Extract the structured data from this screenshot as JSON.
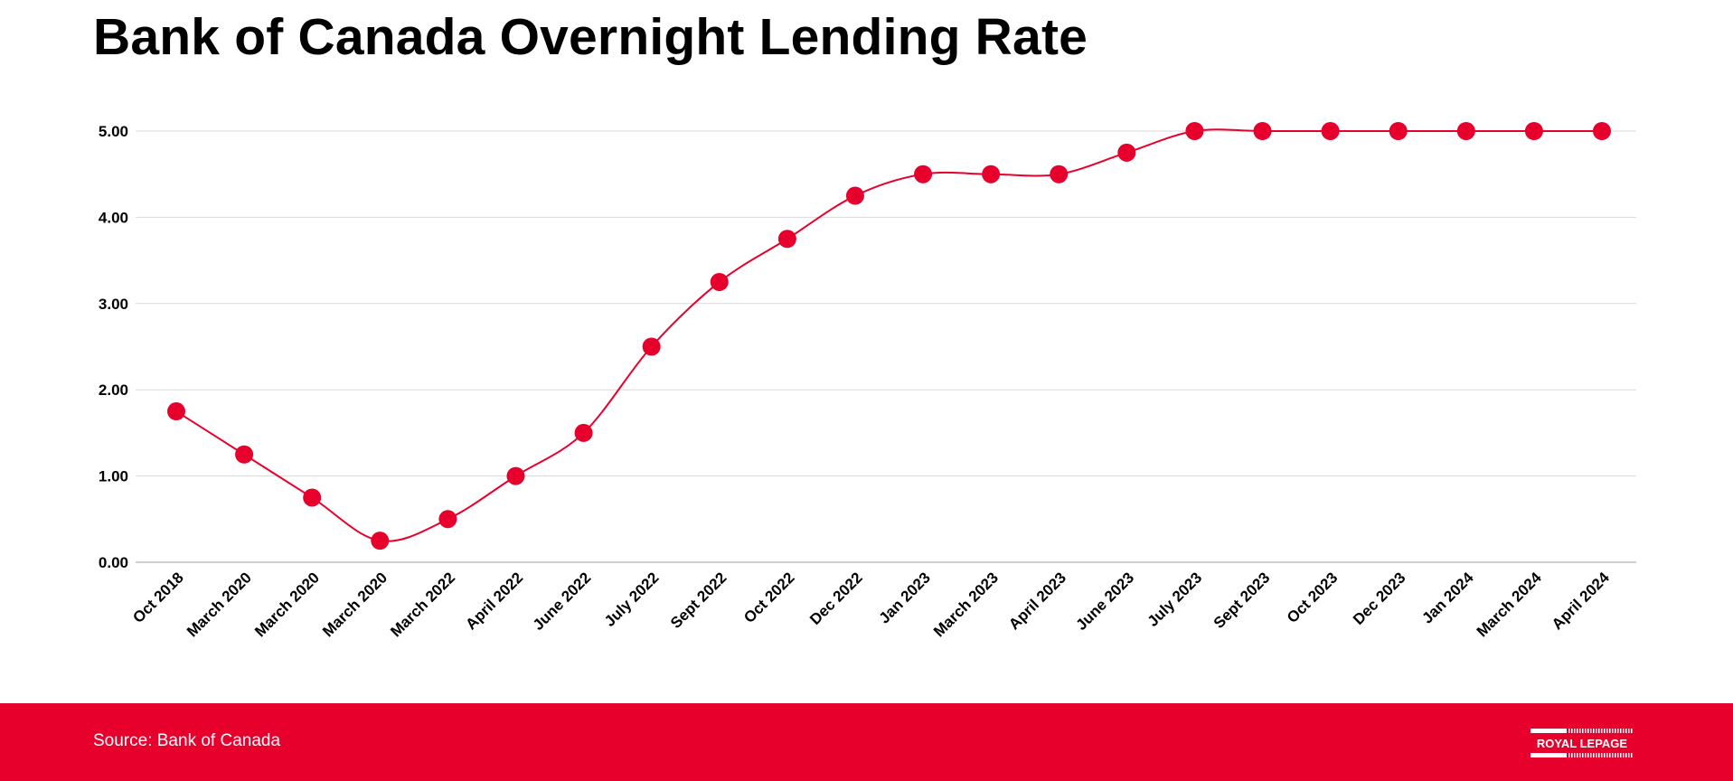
{
  "page": {
    "title": "Bank of Canada Overnight Lending Rate"
  },
  "footer": {
    "source": "Source: Bank of Canada",
    "brand_logo_text": "ROYAL LEPAGE"
  },
  "colors": {
    "accent": "#e8002c",
    "grid": "#d9d9d9",
    "axis": "#bfbfbf",
    "text": "#000000"
  },
  "chart_data": {
    "type": "line",
    "title": "Bank of Canada Overnight Lending Rate",
    "xlabel": "",
    "ylabel": "",
    "smooth": true,
    "markers": true,
    "grid": true,
    "legend": "none",
    "ylim": [
      0,
      5
    ],
    "yticks": [
      "0.00",
      "1.00",
      "2.00",
      "3.00",
      "4.00",
      "5.00"
    ],
    "categories": [
      "Oct 2018",
      "March 2020",
      "March 2020",
      "March 2020",
      "March 2022",
      "April 2022",
      "June 2022",
      "July 2022",
      "Sept 2022",
      "Oct 2022",
      "Dec 2022",
      "Jan 2023",
      "March 2023",
      "April 2023",
      "June 2023",
      "July 2023",
      "Sept 2023",
      "Oct 2023",
      "Dec 2023",
      "Jan 2024",
      "March 2024",
      "April 2024"
    ],
    "values": [
      1.75,
      1.25,
      0.75,
      0.25,
      0.5,
      1.0,
      1.5,
      2.5,
      3.25,
      3.75,
      4.25,
      4.5,
      4.5,
      4.5,
      4.75,
      5.0,
      5.0,
      5.0,
      5.0,
      5.0,
      5.0,
      5.0
    ]
  }
}
